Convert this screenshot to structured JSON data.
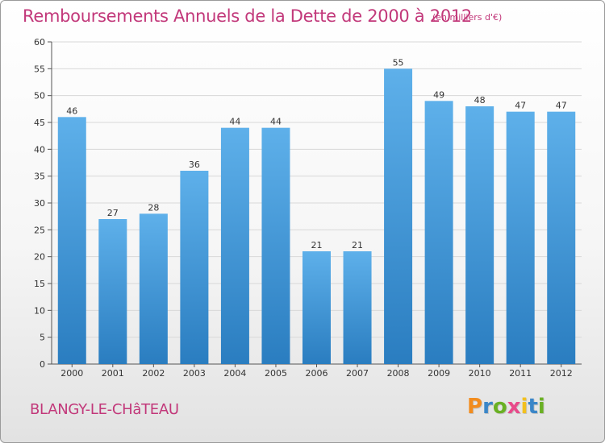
{
  "header": {
    "title": "Remboursements Annuels de la Dette de 2000 à 2012",
    "subtitle": "(en milliers d'€)"
  },
  "footer": {
    "city": "BLANGY-LE-CHâTEAU",
    "logo": {
      "text": "Proxiti",
      "colors": [
        "#f28c1e",
        "#3a86c8",
        "#6ab023",
        "#e84a8a",
        "#f2c01e",
        "#3a86c8",
        "#6ab023"
      ]
    }
  },
  "colors": {
    "bar_light": "#5eb0ea",
    "bar_dark": "#2a7dc0",
    "accent": "#c2387a",
    "axis": "#555555",
    "grid": "#d8d8d8"
  },
  "chart_data": {
    "type": "bar",
    "title": "Remboursements Annuels de la Dette de 2000 à 2012",
    "subtitle": "(en milliers d'€)",
    "categories": [
      "2000",
      "2001",
      "2002",
      "2003",
      "2004",
      "2005",
      "2006",
      "2007",
      "2008",
      "2009",
      "2010",
      "2011",
      "2012"
    ],
    "values": [
      46,
      27,
      28,
      36,
      44,
      44,
      21,
      21,
      55,
      49,
      48,
      47,
      47
    ],
    "ylim": [
      0,
      60
    ],
    "yticks": [
      0,
      5,
      10,
      15,
      20,
      25,
      30,
      35,
      40,
      45,
      50,
      55,
      60
    ],
    "grid": true,
    "data_labels": true
  }
}
